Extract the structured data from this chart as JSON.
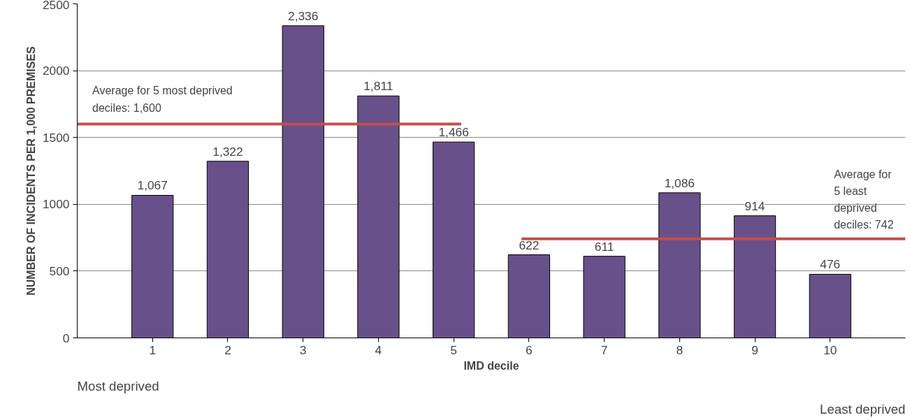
{
  "chart_data": {
    "type": "bar",
    "xlabel": "IMD decile",
    "ylabel": "NUMBER OF INCIDENTS PER 1,000 PREMISES",
    "categories": [
      "1",
      "2",
      "3",
      "4",
      "5",
      "6",
      "7",
      "8",
      "9",
      "10"
    ],
    "values": [
      1067,
      1322,
      2336,
      1811,
      1466,
      622,
      611,
      1086,
      914,
      476
    ],
    "color": "#68518a",
    "ylim": [
      0,
      2500
    ],
    "yticks": [
      0,
      500,
      1000,
      1500,
      2000,
      2500
    ],
    "grid": "y",
    "value_labels": [
      "1,067",
      "1,322",
      "2,336",
      "1,811",
      "1,466",
      "622",
      "611",
      "1,086",
      "914",
      "476"
    ],
    "ref_lines": [
      {
        "axis": "y",
        "value": 1600,
        "label": "Average for  5 most deprived deciles: 1,600",
        "color": "#c0504d"
      },
      {
        "axis": "y",
        "value": 742,
        "label": "Average for 5 least deprived deciles: 742",
        "color": "#c0504d"
      }
    ],
    "annotations": [
      "Most deprived",
      "Least deprived"
    ]
  }
}
